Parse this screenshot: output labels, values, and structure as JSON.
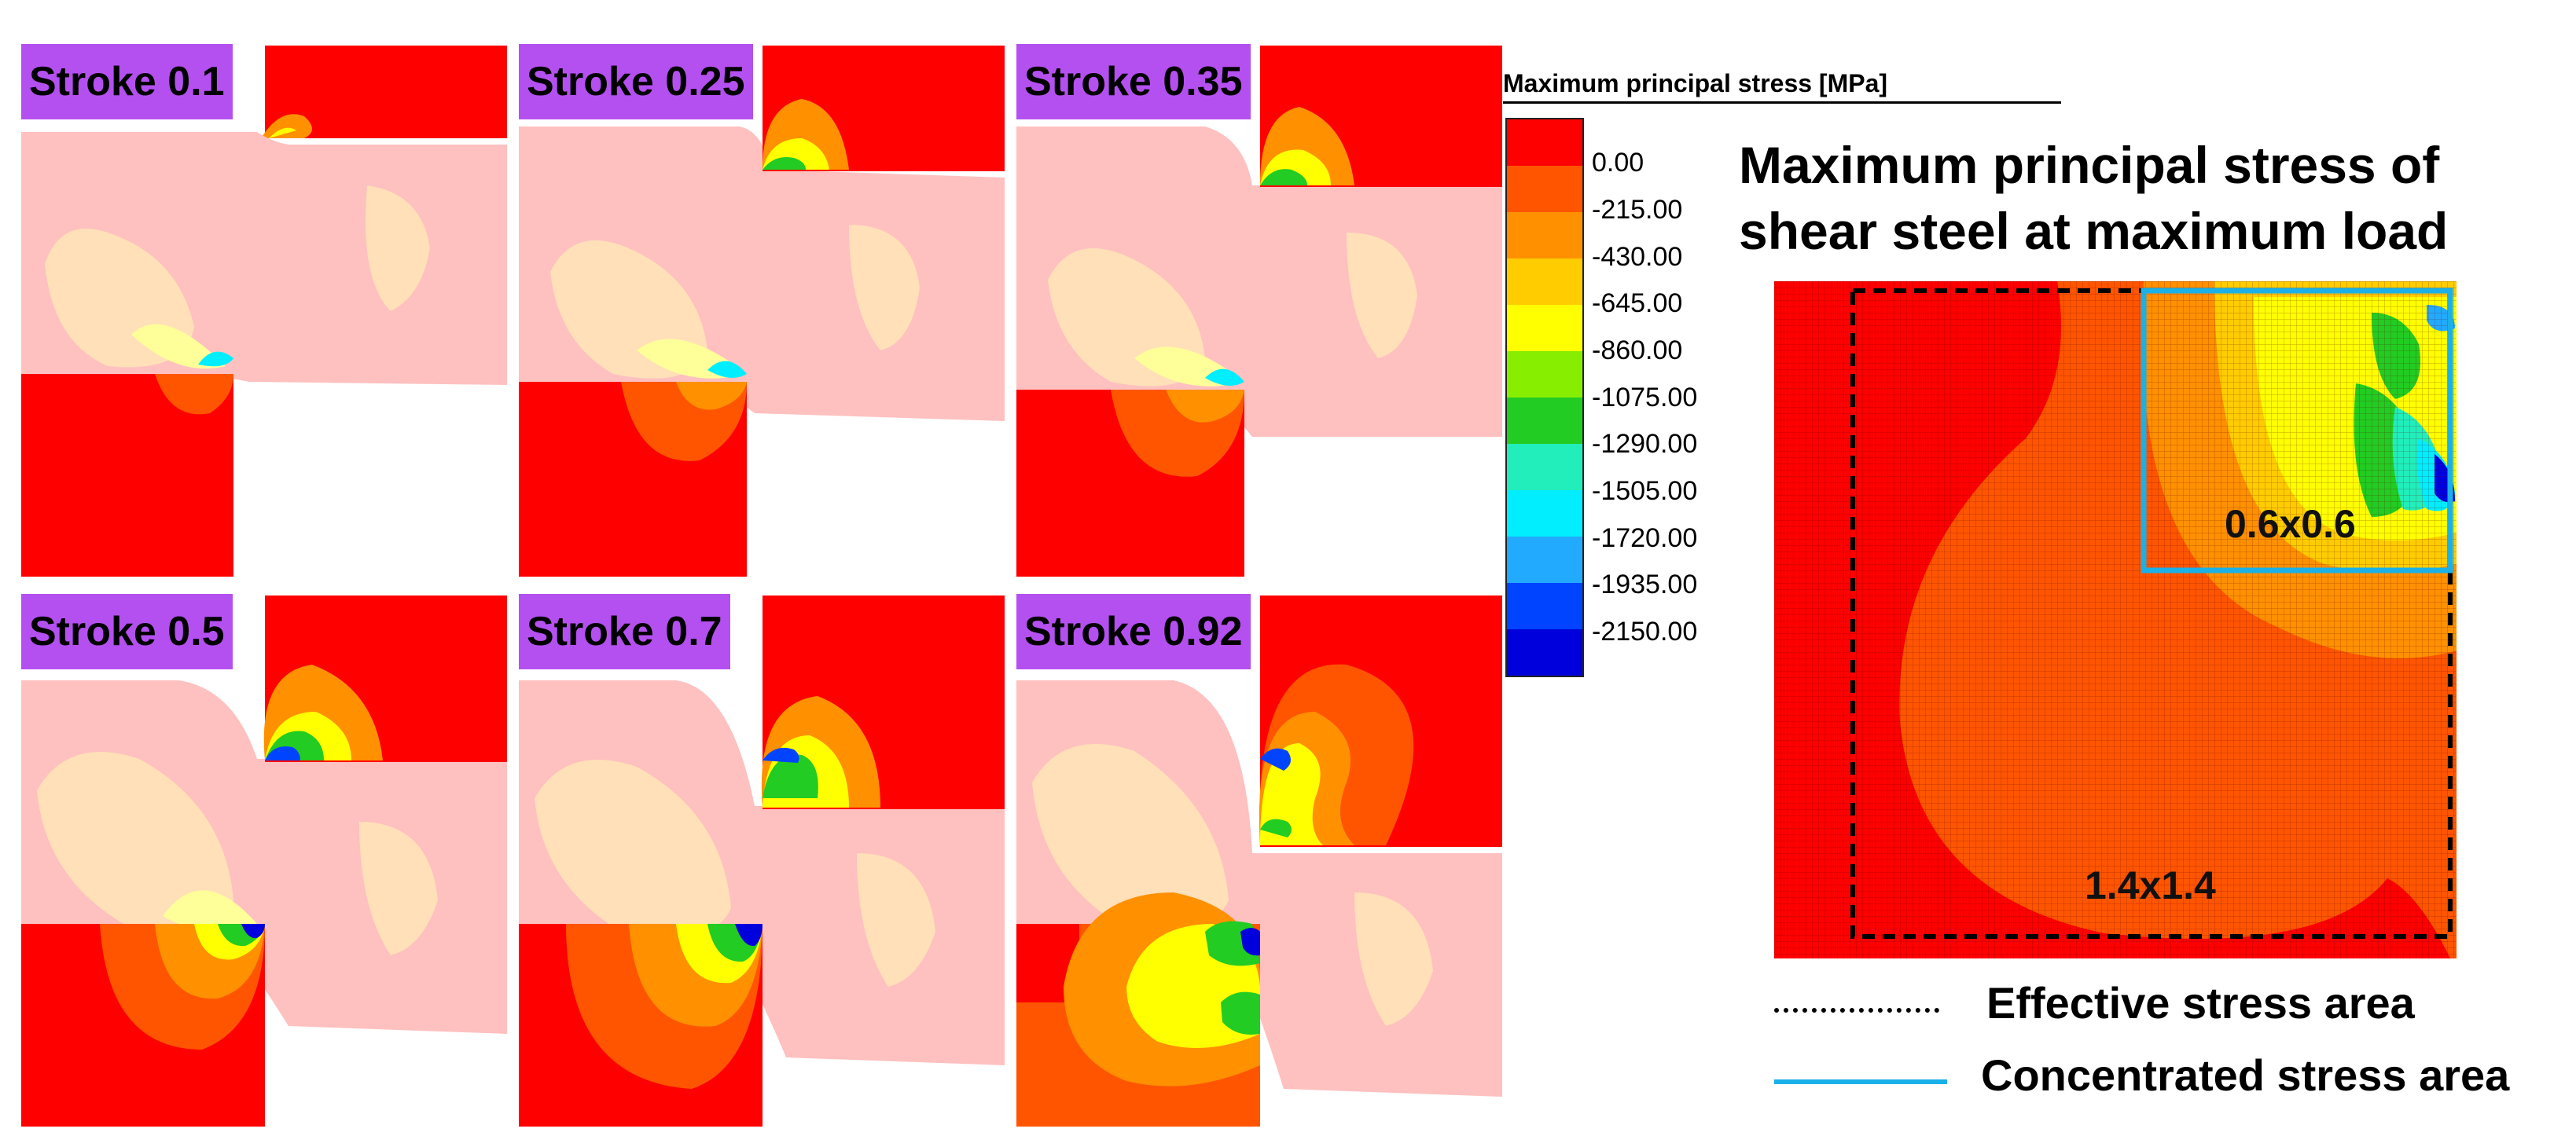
{
  "panels": [
    {
      "label": "Stroke 0.1"
    },
    {
      "label": "Stroke 0.25"
    },
    {
      "label": "Stroke 0.35"
    },
    {
      "label": "Stroke 0.5"
    },
    {
      "label": "Stroke 0.7"
    },
    {
      "label": "Stroke 0.92"
    }
  ],
  "legend": {
    "title": "Maximum principal stress [MPa]",
    "values": [
      "0.00",
      "-215.00",
      "-430.00",
      "-645.00",
      "-860.00",
      "-1075.00",
      "-1290.00",
      "-1505.00",
      "-1720.00",
      "-1935.00",
      "-2150.00"
    ],
    "colors": [
      "#ff0000",
      "#ff5500",
      "#ff9000",
      "#ffcc00",
      "#ffff00",
      "#88ee00",
      "#22cc22",
      "#22eebb",
      "#00eeff",
      "#22aaff",
      "#0044ff",
      "#0000dd"
    ]
  },
  "detail": {
    "title_line1": "Maximum principal stress of",
    "title_line2": "shear steel at maximum load",
    "inner_box_label": "0.6x0.6",
    "outer_box_label": "1.4x1.4"
  },
  "key": {
    "effective_label": "Effective stress area",
    "concentrated_label": "Concentrated stress area",
    "effective_color": "#000000",
    "concentrated_color": "#1ab0e8"
  }
}
